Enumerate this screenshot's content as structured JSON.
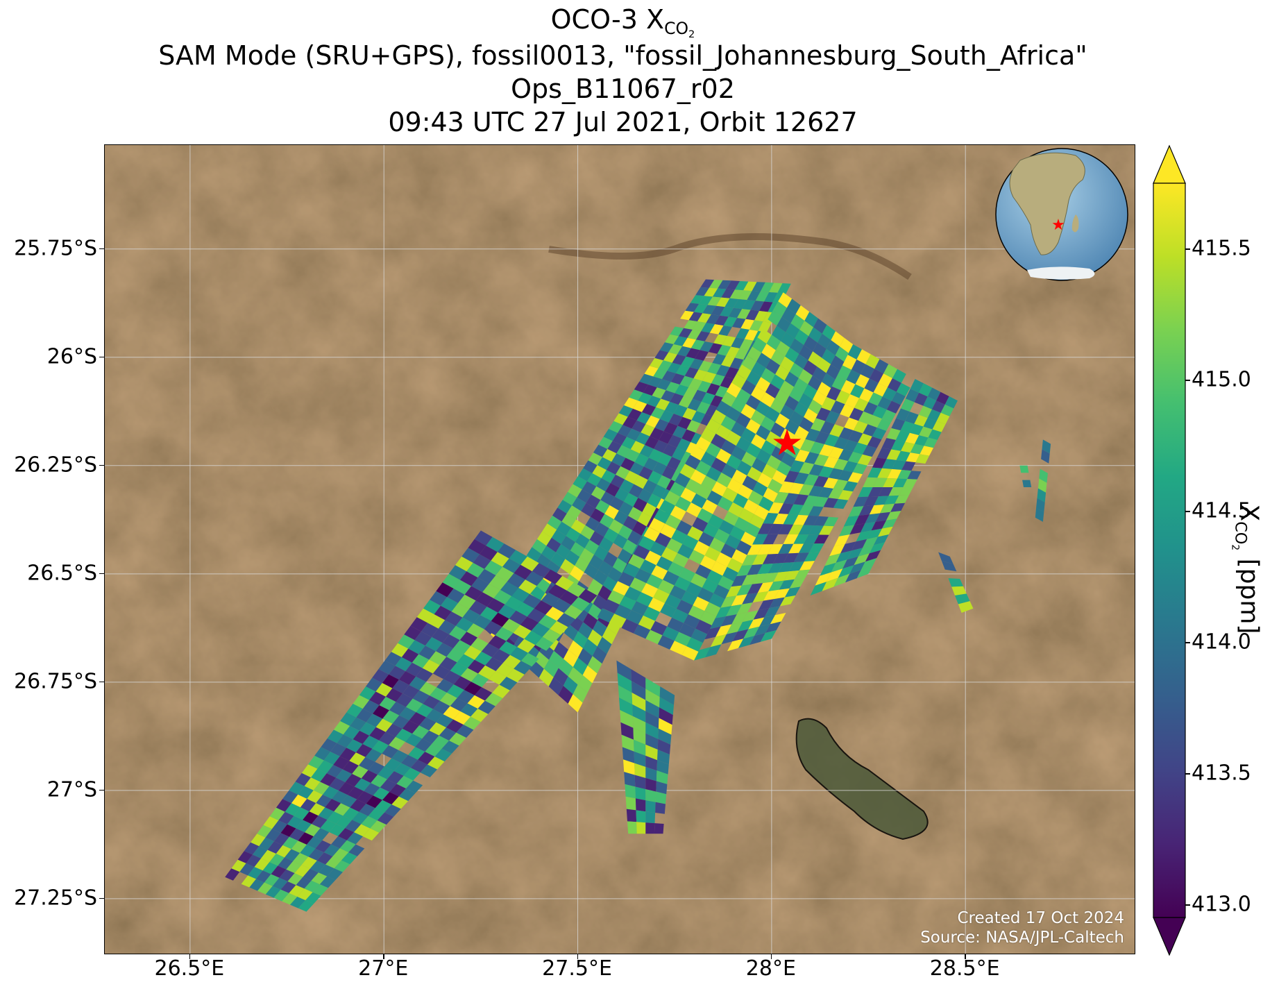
{
  "title": {
    "line1_prefix": "OCO-3 X",
    "line1_sub": "CO",
    "line1_sub2": "2",
    "line2": "SAM Mode (SRU+GPS), fossil0013, \"fossil_Johannesburg_South_Africa\"",
    "line3": "Ops_B11067_r02",
    "line4": "09:43 UTC 27 Jul 2021, Orbit 12627"
  },
  "axes": {
    "lat_labels": [
      "25.75°S",
      "26°S",
      "26.25°S",
      "26.5°S",
      "26.75°S",
      "27°S",
      "27.25°S"
    ],
    "lon_labels": [
      "26.5°E",
      "27°E",
      "27.5°E",
      "28°E",
      "28.5°E"
    ],
    "lon_range": [
      26.28,
      28.94
    ],
    "lat_range": [
      -27.38,
      -25.51
    ]
  },
  "colorbar": {
    "title_prefix": "X",
    "title_sub": "CO",
    "title_sub2": "2",
    "title_suffix": " [ppm]",
    "tick_labels": [
      "415.5",
      "415.0",
      "414.5",
      "414.0",
      "413.5",
      "413.0"
    ],
    "tick_values": [
      415.5,
      415.0,
      414.5,
      414.0,
      413.5,
      413.0
    ],
    "range": [
      412.95,
      415.75
    ],
    "colormap": "viridis"
  },
  "target": {
    "name": "fossil_Johannesburg_South_Africa",
    "lon": 28.04,
    "lat": -26.2,
    "marker": "red-star",
    "color": "#ff0000"
  },
  "credits": {
    "created": "Created 17 Oct 2024",
    "source": "Source: NASA/JPL-Caltech"
  },
  "inset_globe": {
    "marker": "red-star",
    "ocean_color": "#6fa3c8",
    "land_color": "#c2b586"
  },
  "colors": {
    "terrain": "#7a5a3a",
    "grid": "#d8d8d8",
    "border": "#000000"
  }
}
